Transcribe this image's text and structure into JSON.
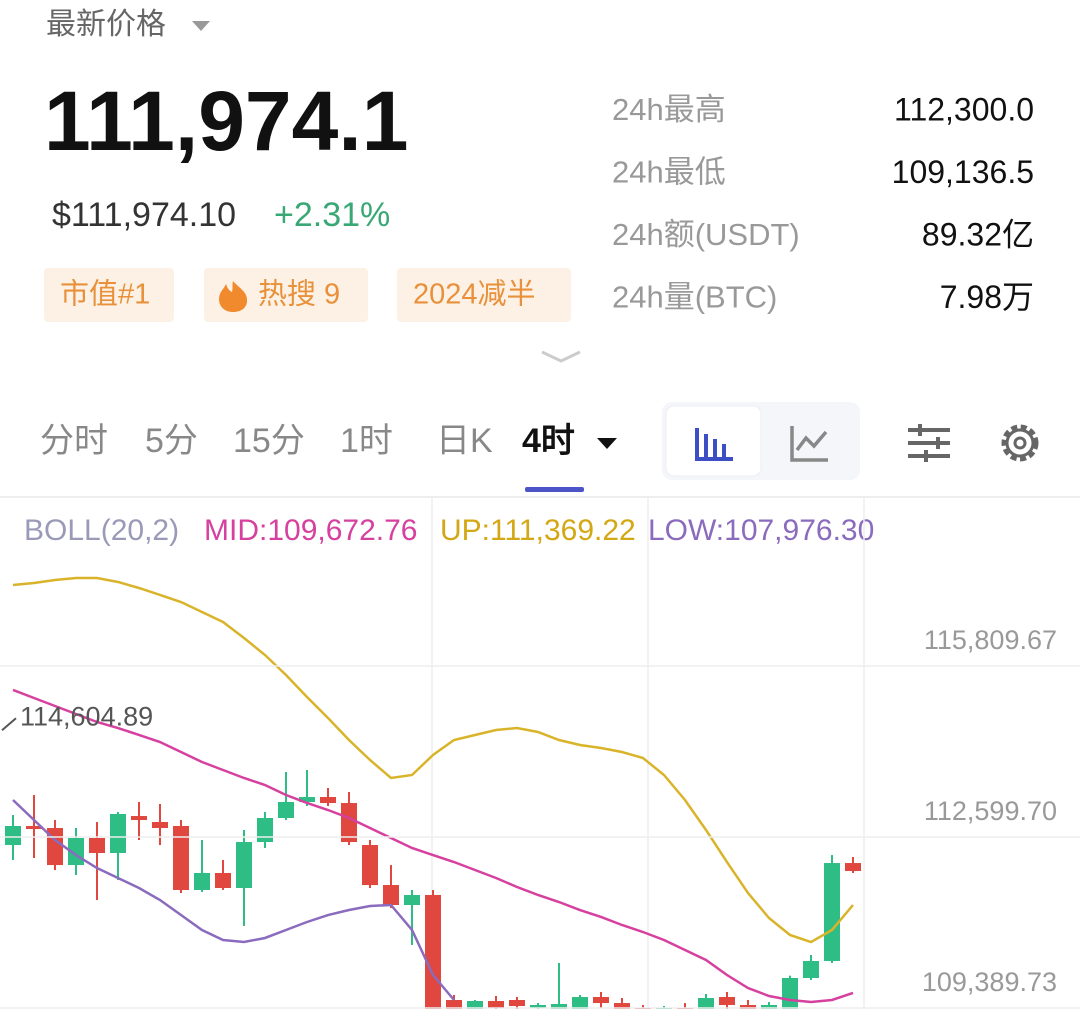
{
  "header": {
    "label": "最新价格",
    "price": "111,974.1",
    "usd_price": "$111,974.10",
    "change": "+2.31%",
    "tags": [
      "市值#1",
      "热搜 9",
      "2024减半"
    ]
  },
  "stats": [
    {
      "label": "24h最高",
      "value": "112,300.0"
    },
    {
      "label": "24h最低",
      "value": "109,136.5"
    },
    {
      "label": "24h额(USDT)",
      "value": "89.32亿"
    },
    {
      "label": "24h量(BTC)",
      "value": "7.98万"
    }
  ],
  "tabs": [
    "分时",
    "5分",
    "15分",
    "1时",
    "日K",
    "4时"
  ],
  "indicator": {
    "name": "BOLL(20,2)",
    "mid": "MID:109,672.76",
    "up": "UP:111,369.22",
    "low": "LOW:107,976.30"
  },
  "chart_data": {
    "type": "candlestick",
    "ylim": [
      109372,
      118982
    ],
    "yticks": [
      {
        "value": 109389.73,
        "label": "109,389.73"
      },
      {
        "value": 112599.7,
        "label": "112,599.70"
      },
      {
        "value": 115809.67,
        "label": "115,809.67"
      }
    ],
    "grid": true,
    "annotation": {
      "value": 114604.89,
      "label": "114,604.89"
    },
    "up_color": "#2ebd85",
    "down_color": "#e0473e",
    "candles": {
      "open": [
        112450,
        112807,
        112769,
        112074,
        112582,
        112300,
        112994,
        112882,
        112807,
        111606,
        111925,
        111643,
        112506,
        112957,
        113257,
        113351,
        113238,
        112450,
        111699,
        111324,
        111512,
        109541,
        109315,
        109522,
        109541,
        109390,
        109353,
        109353,
        109597,
        109484,
        109390,
        109315,
        109390,
        109353,
        109597,
        109447,
        109315,
        109372,
        109954,
        110273,
        112112
      ],
      "high": [
        113013,
        113388,
        112919,
        112769,
        112882,
        113070,
        113257,
        113220,
        112919,
        112544,
        112168,
        112732,
        113070,
        113820,
        113858,
        113520,
        113445,
        112544,
        112074,
        111606,
        111606,
        109635,
        109541,
        109616,
        109597,
        109484,
        110236,
        109635,
        109691,
        109578,
        109447,
        109428,
        109484,
        109654,
        109691,
        109541,
        109503,
        109998,
        110386,
        112262,
        112225
      ],
      "low": [
        112168,
        112206,
        111980,
        111887,
        111418,
        111793,
        112544,
        112450,
        111549,
        111568,
        111606,
        110930,
        112394,
        112919,
        113182,
        113182,
        112450,
        111643,
        111268,
        110573,
        109165,
        109259,
        109259,
        109315,
        109315,
        109259,
        109259,
        109259,
        109390,
        109259,
        109259,
        109259,
        109259,
        109259,
        109353,
        109259,
        109259,
        109259,
        109916,
        110236,
        111925
      ],
      "close": [
        112807,
        112750,
        112074,
        112582,
        112300,
        113032,
        112919,
        112769,
        111606,
        111925,
        111643,
        112506,
        112957,
        113257,
        113351,
        113238,
        112506,
        111699,
        111324,
        111512,
        109259,
        109315,
        109522,
        109390,
        109428,
        109447,
        109466,
        109597,
        109484,
        109353,
        109315,
        109390,
        109315,
        109578,
        109447,
        109353,
        109447,
        109954,
        110273,
        112112,
        111962
      ]
    },
    "series": [
      {
        "color": "#d9b42a",
        "values": [
          117330,
          117368,
          117424,
          117462,
          117462,
          117387,
          117274,
          117143,
          117011,
          116824,
          116636,
          116336,
          116016,
          115641,
          115228,
          114834,
          114421,
          114046,
          113708,
          113764,
          114139,
          114421,
          114515,
          114609,
          114646,
          114571,
          114421,
          114327,
          114271,
          114196,
          114083,
          113764,
          113295,
          112732,
          112131,
          111549,
          111080,
          110761,
          110629,
          110855,
          111324
        ]
      },
      {
        "color": "#d6409f",
        "values": [
          115360,
          115209,
          115059,
          114909,
          114759,
          114646,
          114515,
          114383,
          114196,
          114008,
          113858,
          113708,
          113576,
          113389,
          113239,
          113107,
          112957,
          112769,
          112582,
          112394,
          112262,
          112131,
          111981,
          111831,
          111662,
          111512,
          111380,
          111230,
          111099,
          110949,
          110817,
          110667,
          110479,
          110292,
          110010,
          109766,
          109616,
          109541,
          109503,
          109541,
          109673
        ]
      },
      {
        "color": "#8a6bbd",
        "values": [
          113295,
          112919,
          112544,
          112262,
          112018,
          111831,
          111643,
          111418,
          111136,
          110855,
          110667,
          110629,
          110705,
          110855,
          111005,
          111136,
          111230,
          111305,
          111324,
          110855,
          110010,
          109541,
          null,
          null,
          null,
          null,
          null,
          null,
          null,
          null,
          null,
          null,
          null,
          null,
          null,
          null,
          null,
          null,
          null,
          null,
          null
        ]
      }
    ]
  }
}
